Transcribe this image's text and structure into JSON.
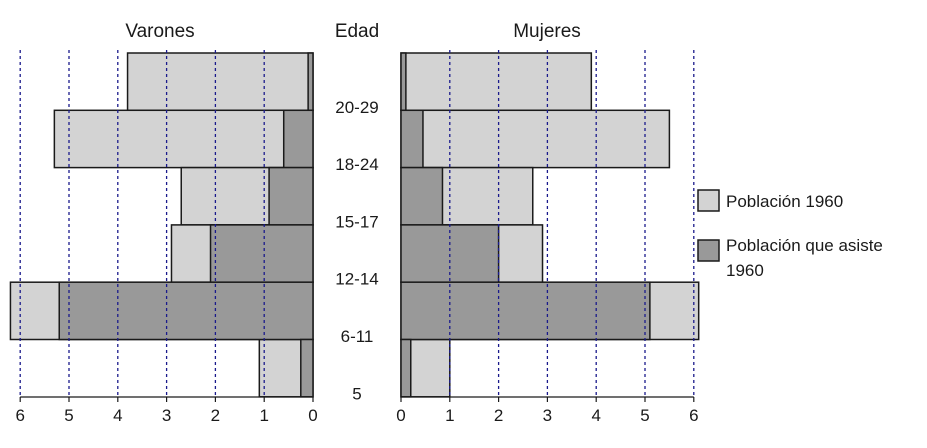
{
  "chart_data": {
    "type": "bar",
    "orientation": "horizontal",
    "layout": "population-pyramid",
    "panels": [
      {
        "title": "Varones",
        "side": "left",
        "xlim": [
          0,
          6
        ]
      },
      {
        "title": "Mujeres",
        "side": "right",
        "xlim": [
          0,
          6
        ]
      }
    ],
    "center_label": "Edad",
    "categories": [
      "20-29",
      "18-24",
      "15-17",
      "12-14",
      "6-11",
      "5"
    ],
    "x_ticks": [
      "0",
      "1",
      "2",
      "3",
      "4",
      "5",
      "6"
    ],
    "grid": "vertical dashed",
    "legend_position": "right",
    "series": [
      {
        "name": "Población 1960",
        "color": "#d3d3d3",
        "varones": [
          3.8,
          5.3,
          2.7,
          2.9,
          6.2,
          1.1
        ],
        "mujeres": [
          3.9,
          5.5,
          2.7,
          2.9,
          6.1,
          1.0
        ]
      },
      {
        "name": "Población que asiste 1960",
        "color": "#999999",
        "varones": [
          0.1,
          0.6,
          0.9,
          2.1,
          5.2,
          0.25
        ],
        "mujeres": [
          0.1,
          0.45,
          0.85,
          2.0,
          5.1,
          0.2
        ]
      }
    ]
  }
}
